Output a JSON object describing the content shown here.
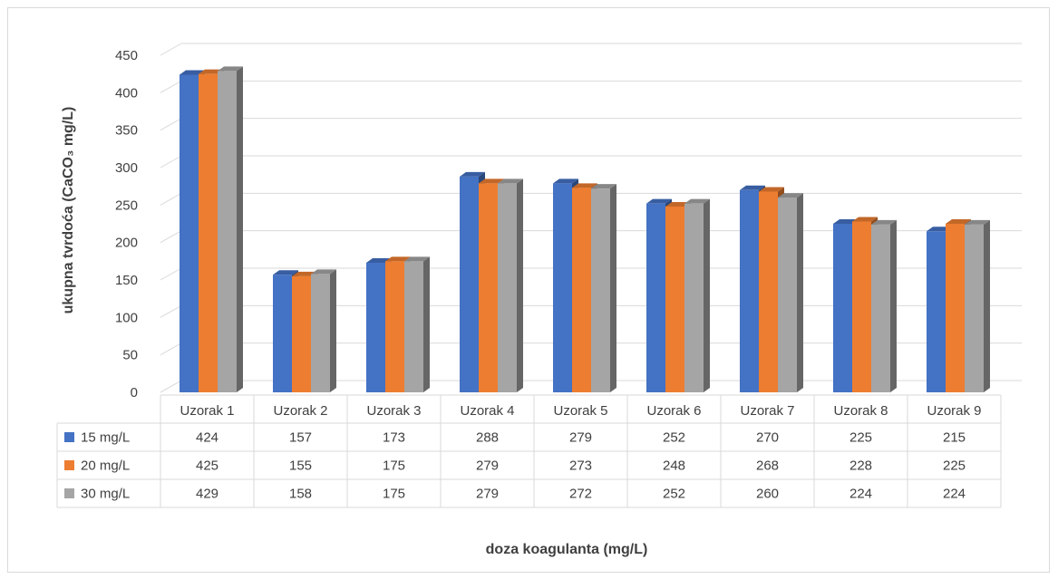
{
  "chart_data": {
    "type": "bar",
    "title": "",
    "xlabel": "doza koagulanta (mg/L)",
    "ylabel": "ukupna tvrdoća (CaCO₃ mg/L)",
    "ylim": [
      0,
      450
    ],
    "yticks": [
      "0",
      "50",
      "100",
      "150",
      "200",
      "250",
      "300",
      "350",
      "400",
      "450"
    ],
    "grid": true,
    "legend_placement": "data-table-left",
    "categories": [
      "Uzorak 1",
      "Uzorak 2",
      "Uzorak 3",
      "Uzorak 4",
      "Uzorak 5",
      "Uzorak 6",
      "Uzorak 7",
      "Uzorak 8",
      "Uzorak 9"
    ],
    "series": [
      {
        "name": "15 mg/L",
        "color": "#4472c4",
        "values": [
          424,
          157,
          173,
          288,
          279,
          252,
          270,
          225,
          215
        ]
      },
      {
        "name": "20 mg/L",
        "color": "#ed7d31",
        "values": [
          425,
          155,
          175,
          279,
          273,
          248,
          268,
          228,
          225
        ]
      },
      {
        "name": "30 mg/L",
        "color": "#a5a5a5",
        "values": [
          429,
          158,
          175,
          279,
          272,
          252,
          260,
          224,
          224
        ]
      }
    ]
  }
}
